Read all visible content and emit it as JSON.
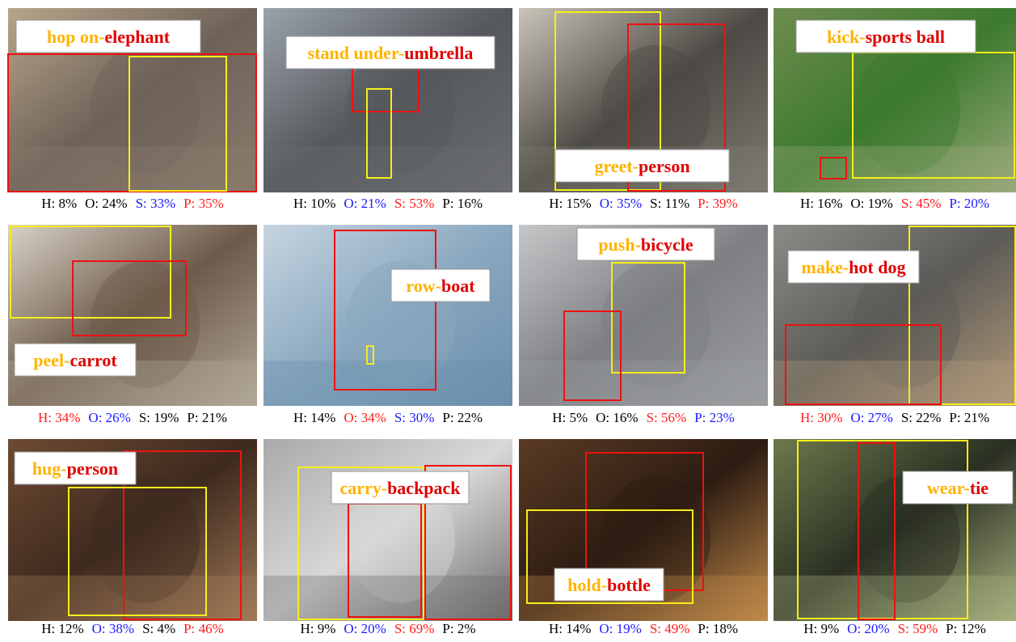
{
  "panels": [
    {
      "verb": "hop on-",
      "object": "elephant",
      "stats": [
        {
          "text": "H: 8%",
          "color": "#000"
        },
        {
          "text": "O: 24%",
          "color": "#000"
        },
        {
          "text": "S: 33%",
          "color": "#1a1aff"
        },
        {
          "text": "P: 35%",
          "color": "#ff1a1a"
        }
      ]
    },
    {
      "verb": "stand under-",
      "object": "umbrella",
      "stats": [
        {
          "text": "H: 10%",
          "color": "#000"
        },
        {
          "text": "O: 21%",
          "color": "#1a1aff"
        },
        {
          "text": "S: 53%",
          "color": "#ff1a1a"
        },
        {
          "text": "P: 16%",
          "color": "#000"
        }
      ]
    },
    {
      "verb": "greet-",
      "object": "person",
      "stats": [
        {
          "text": "H: 15%",
          "color": "#000"
        },
        {
          "text": "O: 35%",
          "color": "#1a1aff"
        },
        {
          "text": "S: 11%",
          "color": "#000"
        },
        {
          "text": "P: 39%",
          "color": "#ff1a1a"
        }
      ]
    },
    {
      "verb": "kick-",
      "object": "sports ball",
      "stats": [
        {
          "text": "H: 16%",
          "color": "#000"
        },
        {
          "text": "O: 19%",
          "color": "#000"
        },
        {
          "text": "S: 45%",
          "color": "#ff1a1a"
        },
        {
          "text": "P: 20%",
          "color": "#1a1aff"
        }
      ]
    },
    {
      "verb": "peel-",
      "object": "carrot",
      "stats": [
        {
          "text": "H: 34%",
          "color": "#ff1a1a"
        },
        {
          "text": "O: 26%",
          "color": "#1a1aff"
        },
        {
          "text": "S: 19%",
          "color": "#000"
        },
        {
          "text": "P: 21%",
          "color": "#000"
        }
      ]
    },
    {
      "verb": "row-",
      "object": "boat",
      "stats": [
        {
          "text": "H: 14%",
          "color": "#000"
        },
        {
          "text": "O: 34%",
          "color": "#ff1a1a"
        },
        {
          "text": "S: 30%",
          "color": "#1a1aff"
        },
        {
          "text": "P: 22%",
          "color": "#000"
        }
      ]
    },
    {
      "verb": "push-",
      "object": "bicycle",
      "stats": [
        {
          "text": "H: 5%",
          "color": "#000"
        },
        {
          "text": "O: 16%",
          "color": "#000"
        },
        {
          "text": "S: 56%",
          "color": "#ff1a1a"
        },
        {
          "text": "P: 23%",
          "color": "#1a1aff"
        }
      ]
    },
    {
      "verb": "make-",
      "object": "hot dog",
      "stats": [
        {
          "text": "H: 30%",
          "color": "#ff1a1a"
        },
        {
          "text": "O: 27%",
          "color": "#1a1aff"
        },
        {
          "text": "S: 22%",
          "color": "#000"
        },
        {
          "text": "P: 21%",
          "color": "#000"
        }
      ]
    },
    {
      "verb": "hug-",
      "object": "person",
      "stats": [
        {
          "text": "H: 12%",
          "color": "#000"
        },
        {
          "text": "O: 38%",
          "color": "#1a1aff"
        },
        {
          "text": "S: 4%",
          "color": "#000"
        },
        {
          "text": "P: 46%",
          "color": "#ff1a1a"
        }
      ]
    },
    {
      "verb": "carry-",
      "object": "backpack",
      "stats": [
        {
          "text": "H: 9%",
          "color": "#000"
        },
        {
          "text": "O: 20%",
          "color": "#1a1aff"
        },
        {
          "text": "S: 69%",
          "color": "#ff1a1a"
        },
        {
          "text": "P: 2%",
          "color": "#000"
        }
      ]
    },
    {
      "verb": "hold-",
      "object": "bottle",
      "stats": [
        {
          "text": "H: 14%",
          "color": "#000"
        },
        {
          "text": "O: 19%",
          "color": "#1a1aff"
        },
        {
          "text": "S: 49%",
          "color": "#ff1a1a"
        },
        {
          "text": "P: 18%",
          "color": "#000"
        }
      ]
    },
    {
      "verb": "wear-",
      "object": "tie",
      "stats": [
        {
          "text": "H: 9%",
          "color": "#000"
        },
        {
          "text": "O: 20%",
          "color": "#1a1aff"
        },
        {
          "text": "S: 59%",
          "color": "#ff1a1a"
        },
        {
          "text": "P: 12%",
          "color": "#000"
        }
      ]
    }
  ]
}
